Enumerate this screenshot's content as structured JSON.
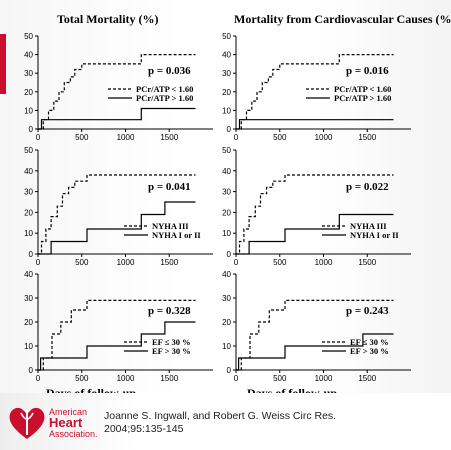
{
  "column_titles": [
    "Total Mortality (%)",
    "Mortality from Cardiovascular Causes (%)"
  ],
  "xlabel": "Days of follow-up",
  "citation": {
    "line1": "Joanne S. Ingwall, and Robert G. Weiss Circ Res.",
    "line2": "2004;95:135-145"
  },
  "logo": {
    "line1": "American",
    "line2": "Heart",
    "line3": "Association."
  },
  "colors": {
    "brand_red": "#c8102e",
    "line": "#000000"
  },
  "chart_data": [
    {
      "type": "line",
      "title": "Total Mortality (%)",
      "xlabel": "",
      "ylabel": "",
      "xlim": [
        0,
        2000
      ],
      "ylim": [
        0,
        50
      ],
      "xticks": [
        0,
        500,
        1000,
        1500
      ],
      "yticks": [
        0,
        10,
        20,
        30,
        40,
        50
      ],
      "annotation": "p = 0.036",
      "legend_position": "right",
      "series": [
        {
          "name": "PCr/ATP < 1.60",
          "style": "dashed",
          "x": [
            0,
            60,
            60,
            120,
            120,
            180,
            180,
            240,
            240,
            300,
            300,
            370,
            370,
            420,
            420,
            500,
            500,
            560,
            560,
            1180,
            1180,
            1800
          ],
          "y": [
            0,
            0,
            5,
            5,
            10,
            10,
            15,
            15,
            20,
            20,
            25,
            25,
            28,
            28,
            32,
            32,
            35,
            35,
            35,
            35,
            40,
            40
          ]
        },
        {
          "name": "PCr/ATP > 1.60",
          "style": "solid",
          "x": [
            0,
            40,
            40,
            1180,
            1180,
            1800
          ],
          "y": [
            0,
            0,
            5,
            5,
            11,
            11
          ]
        }
      ]
    },
    {
      "type": "line",
      "title": "Mortality from Cardiovascular Causes (%)",
      "xlabel": "",
      "ylabel": "",
      "xlim": [
        0,
        2000
      ],
      "ylim": [
        0,
        50
      ],
      "xticks": [
        0,
        500,
        1000,
        1500
      ],
      "yticks": [
        0,
        10,
        20,
        30,
        40,
        50
      ],
      "annotation": "p = 0.016",
      "legend_position": "right",
      "series": [
        {
          "name": "PCr/ATP < 1.60",
          "style": "dashed",
          "x": [
            0,
            60,
            60,
            120,
            120,
            180,
            180,
            240,
            240,
            300,
            300,
            370,
            370,
            420,
            420,
            500,
            500,
            560,
            560,
            1180,
            1180,
            1800
          ],
          "y": [
            0,
            0,
            5,
            5,
            10,
            10,
            15,
            15,
            20,
            20,
            25,
            25,
            28,
            28,
            32,
            32,
            35,
            35,
            35,
            35,
            40,
            40
          ]
        },
        {
          "name": "PCr/ATP > 1.60",
          "style": "solid",
          "x": [
            0,
            40,
            40,
            1800
          ],
          "y": [
            0,
            0,
            5,
            5
          ]
        }
      ]
    },
    {
      "type": "line",
      "title": "",
      "xlabel": "",
      "ylabel": "",
      "xlim": [
        0,
        2000
      ],
      "ylim": [
        0,
        50
      ],
      "xticks": [
        0,
        500,
        1000,
        1500
      ],
      "yticks": [
        0,
        10,
        20,
        30,
        40,
        50
      ],
      "annotation": "p = 0.041",
      "legend_position": "bottom-right",
      "series": [
        {
          "name": "NYHA III",
          "style": "dashed",
          "x": [
            0,
            40,
            40,
            90,
            90,
            150,
            150,
            220,
            220,
            280,
            280,
            350,
            350,
            420,
            420,
            560,
            560,
            1800
          ],
          "y": [
            0,
            0,
            6,
            6,
            12,
            12,
            18,
            18,
            23,
            23,
            29,
            29,
            32,
            32,
            35,
            35,
            38,
            38
          ]
        },
        {
          "name": "NYHA I or II",
          "style": "solid",
          "x": [
            0,
            150,
            150,
            560,
            560,
            1180,
            1180,
            1450,
            1450,
            1800
          ],
          "y": [
            0,
            0,
            6,
            6,
            12,
            12,
            19,
            19,
            25,
            25
          ]
        }
      ]
    },
    {
      "type": "line",
      "title": "",
      "xlabel": "",
      "ylabel": "",
      "xlim": [
        0,
        2000
      ],
      "ylim": [
        0,
        50
      ],
      "xticks": [
        0,
        500,
        1000,
        1500
      ],
      "yticks": [
        0,
        10,
        20,
        30,
        40,
        50
      ],
      "annotation": "p = 0.022",
      "legend_position": "bottom-right",
      "series": [
        {
          "name": "NYHA III",
          "style": "dashed",
          "x": [
            0,
            40,
            40,
            90,
            90,
            150,
            150,
            220,
            220,
            280,
            280,
            350,
            350,
            420,
            420,
            560,
            560,
            1800
          ],
          "y": [
            0,
            0,
            6,
            6,
            12,
            12,
            18,
            18,
            23,
            23,
            29,
            29,
            32,
            32,
            35,
            35,
            38,
            38
          ]
        },
        {
          "name": "NYHA I or II",
          "style": "solid",
          "x": [
            0,
            150,
            150,
            560,
            560,
            1180,
            1180,
            1800
          ],
          "y": [
            0,
            0,
            6,
            6,
            12,
            12,
            19,
            19
          ]
        }
      ]
    },
    {
      "type": "line",
      "title": "",
      "xlabel": "",
      "ylabel": "",
      "xlim": [
        0,
        2000
      ],
      "ylim": [
        0,
        40
      ],
      "xticks": [
        0,
        500,
        1000,
        1500
      ],
      "yticks": [
        0,
        10,
        20,
        30,
        40
      ],
      "annotation": "p = 0.328",
      "legend_position": "bottom-right",
      "series": [
        {
          "name": "EF ≤ 30 %",
          "style": "dashed",
          "x": [
            0,
            60,
            60,
            160,
            160,
            260,
            260,
            380,
            380,
            560,
            560,
            1800
          ],
          "y": [
            0,
            0,
            5,
            5,
            15,
            15,
            20,
            20,
            25,
            25,
            29,
            29
          ]
        },
        {
          "name": "EF > 30 %",
          "style": "solid",
          "x": [
            0,
            30,
            30,
            560,
            560,
            1180,
            1180,
            1450,
            1450,
            1800
          ],
          "y": [
            0,
            0,
            5,
            5,
            10,
            10,
            15,
            15,
            20,
            20
          ]
        }
      ]
    },
    {
      "type": "line",
      "title": "",
      "xlabel": "",
      "ylabel": "",
      "xlim": [
        0,
        2000
      ],
      "ylim": [
        0,
        40
      ],
      "xticks": [
        0,
        500,
        1000,
        1500
      ],
      "yticks": [
        0,
        10,
        20,
        30,
        40
      ],
      "annotation": "p = 0.243",
      "legend_position": "bottom-right",
      "series": [
        {
          "name": "EF ≤ 30 %",
          "style": "dashed",
          "x": [
            0,
            60,
            60,
            160,
            160,
            260,
            260,
            380,
            380,
            560,
            560,
            1800
          ],
          "y": [
            0,
            0,
            5,
            5,
            15,
            15,
            20,
            20,
            25,
            25,
            29,
            29
          ]
        },
        {
          "name": "EF > 30 %",
          "style": "solid",
          "x": [
            0,
            30,
            30,
            560,
            560,
            1450,
            1450,
            1800
          ],
          "y": [
            0,
            0,
            5,
            5,
            10,
            10,
            15,
            15
          ]
        }
      ]
    }
  ]
}
